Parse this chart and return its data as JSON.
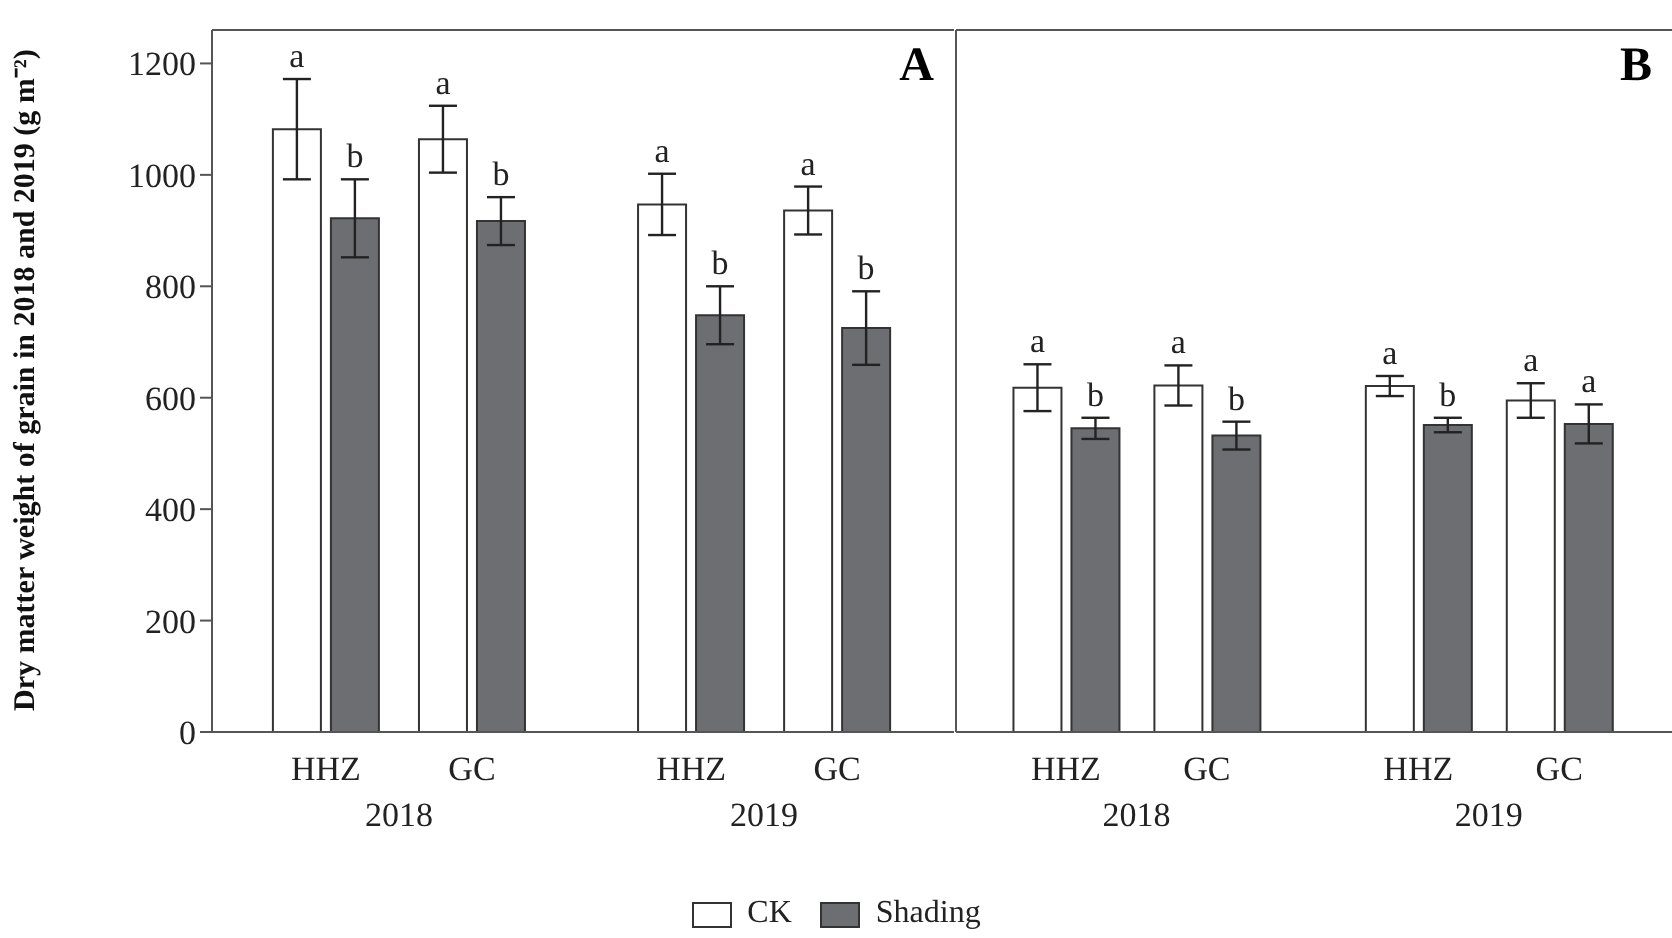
{
  "chart_data": [
    {
      "type": "bar",
      "title": "A",
      "ylabel": "Dry matter weight of grain in 2018 and 2019 (g m⁻²)",
      "categories": [
        "HHZ",
        "GC",
        "HHZ",
        "GC"
      ],
      "annotations": [
        "2018",
        "2019"
      ],
      "series": [
        {
          "name": "CK",
          "color": "#ffffff",
          "values": [
            1082,
            1064,
            947,
            936
          ],
          "errors": [
            90,
            60,
            55,
            43
          ],
          "value_labels": [
            "a",
            "a",
            "a",
            "a"
          ]
        },
        {
          "name": "Shading",
          "color": "#6d6e71",
          "values": [
            922,
            917,
            748,
            725
          ],
          "errors": [
            70,
            43,
            52,
            66
          ],
          "value_labels": [
            "b",
            "b",
            "b",
            "b"
          ]
        }
      ],
      "ylim": [
        0,
        1260
      ],
      "yticks": [
        0,
        200,
        400,
        600,
        800,
        1000,
        1200
      ],
      "grid": false,
      "legend": "bottom"
    },
    {
      "type": "bar",
      "title": "B",
      "categories": [
        "HHZ",
        "GC",
        "HHZ",
        "GC"
      ],
      "annotations": [
        "2018",
        "2019"
      ],
      "series": [
        {
          "name": "CK",
          "color": "#ffffff",
          "values": [
            618,
            622,
            621,
            595
          ],
          "errors": [
            42,
            36,
            18,
            31
          ],
          "value_labels": [
            "a",
            "a",
            "a",
            "a"
          ]
        },
        {
          "name": "Shading",
          "color": "#6d6e71",
          "values": [
            545,
            532,
            551,
            553
          ],
          "errors": [
            19,
            25,
            13,
            35
          ],
          "value_labels": [
            "b",
            "b",
            "b",
            "a"
          ]
        }
      ],
      "ylim": [
        0,
        1260
      ],
      "yticks": [
        0,
        200,
        400,
        600,
        800,
        1000,
        1200
      ],
      "tick_labels": "x",
      "grid": false,
      "legend": "bottom"
    }
  ]
}
